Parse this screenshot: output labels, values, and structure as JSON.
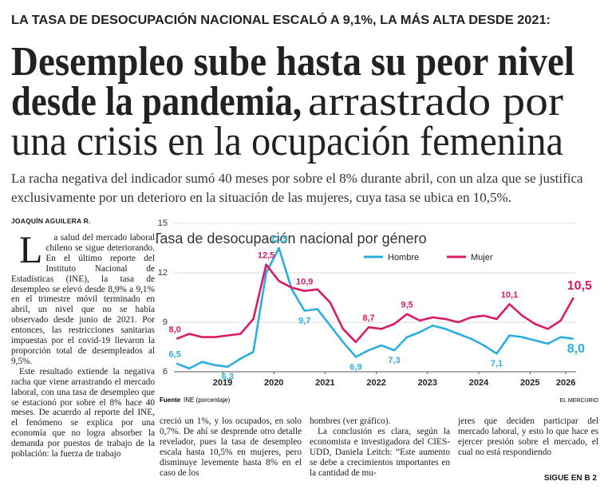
{
  "kicker": "LA TASA DE DESOCUPACIÓN NACIONAL ESCALÓ A 9,1%, LA MÁS ALTA DESDE 2021:",
  "headline": {
    "line1": "Desempleo sube hasta su peor nivel",
    "line2_bold": "desde la pandemia,",
    "line2_light": "arrastrado por",
    "line3": "una crisis en la ocupación femenina"
  },
  "deck": "La racha negativa del indicador sumó 40 meses por sobre el 8% durante abril, con un alza que se justifica exclusivamente por un deterioro en la situación de las mujeres, cuya tasa se ubica en 10,5%.",
  "byline": "JOAQUÍN AGUILERA R.",
  "columns": [
    [
      "La salud del mercado laboral chileno se sigue deteriorando. En el último reporte del Instituto Nacional de Estadísticas (INE), la tasa de desempleo se elevó desde 8,9% a 9,1% en el trimestre móvil terminado en abril, un nivel que no se había observado desde junio de 2021. Por entonces, las restricciones sanitarias impuestas por el covid-19 llevaron la proporción total de desempleados al 9,5%.",
      "Este resultado extiende la negativa racha que viene arrastrando el mercado laboral, con una tasa de desempleo que se estacionó por sobre el 8% hace 40 meses. De acuerdo al reporte del INE, el fenómeno se explica por una economía que no logra absorber la demanda por puestos de trabajo de la población: la fuerza de trabajo"
    ],
    [
      "creció un 1%, y los ocupados, en solo 0,7%. De ahí se desprende otro detalle revelador, pues la tasa de desempleo escala hasta 10,5% en mujeres, pero disminuye levemente hasta 8% en el caso de los"
    ],
    [
      "hombres (ver gráfico).",
      "La conclusión es clara, según la economista e investigadora del CIES-UDD, Daniela Leitch: “Este aumento se debe a crecimientos importantes en la cantidad de mu-"
    ],
    [
      "jeres que deciden participar del mercado laboral, y esto lo que hace es ejercer presión sobre el mercado, el cual no está respondiendo"
    ]
  ],
  "continued": "SIGUE EN B 2",
  "chart_data": {
    "type": "line",
    "title": "Tasa de desocupación nacional por género",
    "x": [
      2018.6,
      2018.85,
      2019.1,
      2019.35,
      2019.6,
      2019.85,
      2020.1,
      2020.35,
      2020.6,
      2020.85,
      2021.1,
      2021.35,
      2021.6,
      2021.85,
      2022.1,
      2022.35,
      2022.6,
      2022.85,
      2023.1,
      2023.35,
      2023.6,
      2023.85,
      2024.1,
      2024.35,
      2024.6,
      2024.85,
      2025.1,
      2025.35,
      2025.6,
      2025.85,
      2026.1,
      2026.35
    ],
    "series": [
      {
        "name": "Hombre",
        "color": "#2aaee0",
        "values": [
          6.5,
          6.2,
          6.6,
          6.4,
          6.3,
          6.8,
          7.2,
          12.0,
          13.5,
          11.0,
          9.7,
          9.8,
          8.8,
          7.8,
          6.9,
          7.3,
          7.6,
          7.3,
          8.1,
          8.4,
          8.8,
          8.6,
          8.3,
          8.0,
          7.6,
          7.1,
          8.2,
          8.1,
          7.9,
          7.7,
          8.1,
          8.0
        ],
        "value_labels": [
          "6,5",
          null,
          null,
          null,
          "6,3",
          null,
          null,
          null,
          "13,5",
          null,
          "9,7",
          null,
          null,
          null,
          "6,9",
          null,
          null,
          "7,3",
          null,
          null,
          null,
          null,
          null,
          null,
          null,
          "7,1",
          null,
          null,
          null,
          null,
          null,
          "8,0"
        ]
      },
      {
        "name": "Mujer",
        "color": "#d81b64",
        "values": [
          8.0,
          8.3,
          8.1,
          8.1,
          8.2,
          8.3,
          9.2,
          12.5,
          11.5,
          11.1,
          10.9,
          11.0,
          10.2,
          8.6,
          7.8,
          8.7,
          8.6,
          8.9,
          9.5,
          9.1,
          9.3,
          9.2,
          9.0,
          9.3,
          9.4,
          9.2,
          10.1,
          9.4,
          8.9,
          8.6,
          9.1,
          10.5
        ],
        "value_labels": [
          "8,0",
          null,
          null,
          null,
          null,
          null,
          null,
          "12,5",
          null,
          null,
          "10,9",
          null,
          null,
          null,
          null,
          "8,7",
          null,
          null,
          "9,5",
          null,
          null,
          null,
          null,
          null,
          null,
          null,
          "10,1",
          null,
          null,
          null,
          null,
          "10,5"
        ]
      }
    ],
    "xlim": [
      2018.55,
      2026.4
    ],
    "xticks": [
      {
        "value": 2019.5,
        "label": "2019"
      },
      {
        "value": 2020.5,
        "label": "2020"
      },
      {
        "value": 2021.5,
        "label": "2021"
      },
      {
        "value": 2022.5,
        "label": "2022"
      },
      {
        "value": 2023.5,
        "label": "2023"
      },
      {
        "value": 2024.5,
        "label": "2024"
      },
      {
        "value": 2025.5,
        "label": "2025"
      },
      {
        "value": 2026.2,
        "label": "2026"
      }
    ],
    "ylim": [
      6,
      15
    ],
    "yticks": [
      6,
      9,
      12,
      15
    ],
    "grid": true,
    "legend": "top",
    "source_label": "Fuente",
    "source": "INE (porcentaje)",
    "credit": "EL MERCURIO"
  }
}
